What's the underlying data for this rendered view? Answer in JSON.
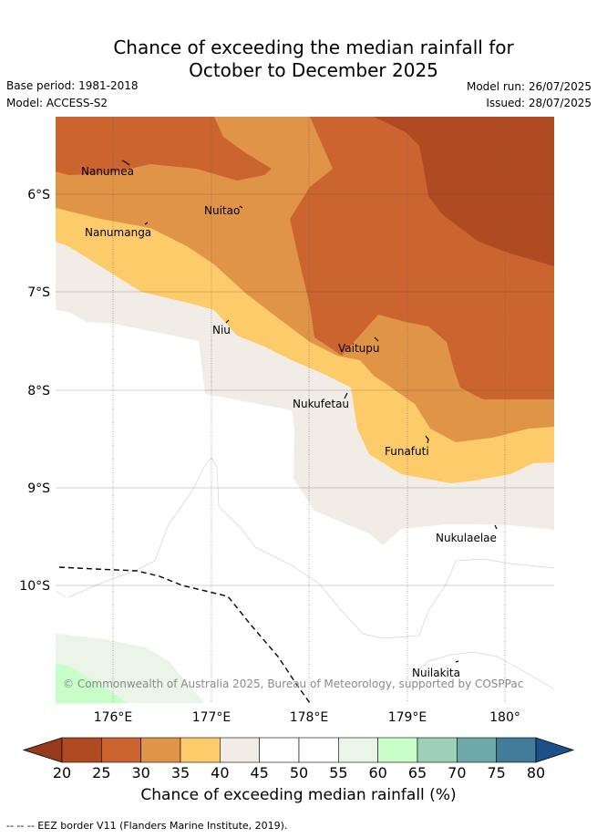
{
  "title_line1": "Chance of exceeding the median rainfall for",
  "title_line2": "October to December 2025",
  "base_period": "Base period: 1981-2018",
  "model": "Model: ACCESS-S2",
  "model_run": "Model run: 26/07/2025",
  "issued": "Issued: 28/07/2025",
  "map": {
    "lon_labels": [
      "176°E",
      "177°E",
      "178°E",
      "179°E",
      "180°"
    ],
    "lat_labels": [
      "6°S",
      "7°S",
      "8°S",
      "9°S",
      "10°S"
    ],
    "places": [
      {
        "name": "Nanumea"
      },
      {
        "name": "Nuitao"
      },
      {
        "name": "Nanumanga"
      },
      {
        "name": "Niu"
      },
      {
        "name": "Vaitupu"
      },
      {
        "name": "Nukufetau"
      },
      {
        "name": "Funafuti"
      },
      {
        "name": "Nukulaelae"
      },
      {
        "name": "Nuilakita"
      }
    ],
    "copyright": "© Commonwealth of Australia 2025, Bureau of Meteorology, supported by COSPPac"
  },
  "colorbar": {
    "ticks": [
      "20",
      "25",
      "30",
      "35",
      "40",
      "45",
      "50",
      "55",
      "60",
      "65",
      "70",
      "75",
      "80"
    ],
    "colors": [
      "#b04a22",
      "#cc6430",
      "#e09448",
      "#fecb6a",
      "#f1ece6",
      "#ffffff",
      "#ffffff",
      "#eaf5e8",
      "#c8ffc8",
      "#9ed0b8",
      "#6fa8a8",
      "#437c98"
    ],
    "under_color": "#973a1c",
    "over_color": "#1c5088",
    "label": "Chance of exceeding median rainfall (%)"
  },
  "footer": "-- -- -- EEZ border V11 (Flanders Marine Institute, 2019)."
}
